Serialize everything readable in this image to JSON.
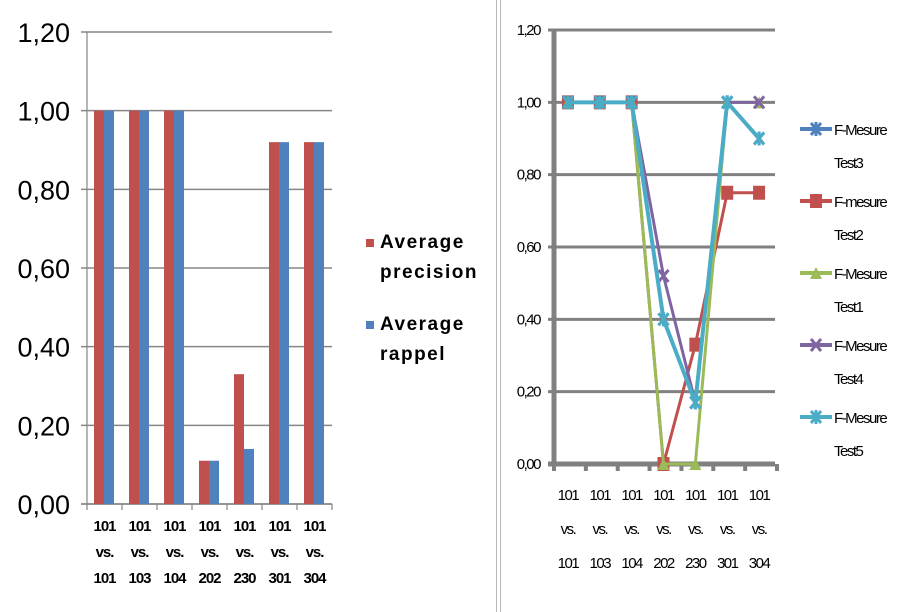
{
  "chart_data": [
    {
      "type": "bar",
      "title": "",
      "xlabel": "",
      "ylabel": "",
      "categories": [
        [
          "101",
          "vs.",
          "101"
        ],
        [
          "101",
          "vs.",
          "103"
        ],
        [
          "101",
          "vs.",
          "104"
        ],
        [
          "101",
          "vs.",
          "202"
        ],
        [
          "101",
          "vs.",
          "230"
        ],
        [
          "101",
          "vs.",
          "301"
        ],
        [
          "101",
          "vs.",
          "304"
        ]
      ],
      "series": [
        {
          "name": "Average precision",
          "legend_lines": [
            "Average",
            "precision"
          ],
          "color": "#c0504d",
          "values": [
            1.0,
            1.0,
            1.0,
            0.11,
            0.33,
            0.92,
            0.92
          ]
        },
        {
          "name": "Average rappel",
          "legend_lines": [
            "Average",
            "rappel"
          ],
          "color": "#4f81bd",
          "values": [
            1.0,
            1.0,
            1.0,
            0.11,
            0.14,
            0.92,
            0.92
          ]
        }
      ],
      "ylim": [
        0,
        1.2
      ],
      "yticks": [
        "0,00",
        "0,20",
        "0,40",
        "0,60",
        "0,80",
        "1,00",
        "1,20"
      ],
      "grid": true,
      "legend_position": "right"
    },
    {
      "type": "line",
      "title": "",
      "xlabel": "",
      "ylabel": "",
      "categories": [
        [
          "101",
          "vs.",
          "101"
        ],
        [
          "101",
          "vs.",
          "103"
        ],
        [
          "101",
          "vs.",
          "104"
        ],
        [
          "101",
          "vs.",
          "202"
        ],
        [
          "101",
          "vs.",
          "230"
        ],
        [
          "101",
          "vs.",
          "301"
        ],
        [
          "101",
          "vs.",
          "304"
        ]
      ],
      "series": [
        {
          "name": "F-Mesure Test3",
          "legend_lines": [
            "F-Mesure",
            "Test3"
          ],
          "color": "#4f81bd",
          "marker": "star",
          "values": [
            1.0,
            1.0,
            1.0,
            0.4,
            0.17,
            1.0,
            0.9
          ]
        },
        {
          "name": "F-mesure Test2",
          "legend_lines": [
            "F-mesure",
            "Test2"
          ],
          "color": "#c0504d",
          "marker": "square",
          "values": [
            1.0,
            1.0,
            1.0,
            0.0,
            0.33,
            0.75,
            0.75
          ]
        },
        {
          "name": "F-Mesure Test1",
          "legend_lines": [
            "F-Mesure",
            "Test1"
          ],
          "color": "#9bbb59",
          "marker": "triangle",
          "values": [
            1.0,
            1.0,
            1.0,
            0.0,
            0.0,
            1.0,
            1.0
          ]
        },
        {
          "name": "F-Mesure Test4",
          "legend_lines": [
            "F-Mesure",
            "Test4"
          ],
          "color": "#8064a2",
          "marker": "x",
          "values": [
            1.0,
            1.0,
            1.0,
            0.52,
            0.17,
            1.0,
            1.0
          ]
        },
        {
          "name": "F-Mesure Test5",
          "legend_lines": [
            "F-Mesure",
            "Test5"
          ],
          "color": "#4bacc6",
          "marker": "star",
          "values": [
            1.0,
            1.0,
            1.0,
            0.4,
            0.17,
            1.0,
            0.9
          ]
        }
      ],
      "ylim": [
        0,
        1.2
      ],
      "yticks": [
        "0,00",
        "0,20",
        "0,40",
        "0,60",
        "0,80",
        "1,00",
        "1,20"
      ],
      "grid": true,
      "legend_position": "right"
    }
  ]
}
